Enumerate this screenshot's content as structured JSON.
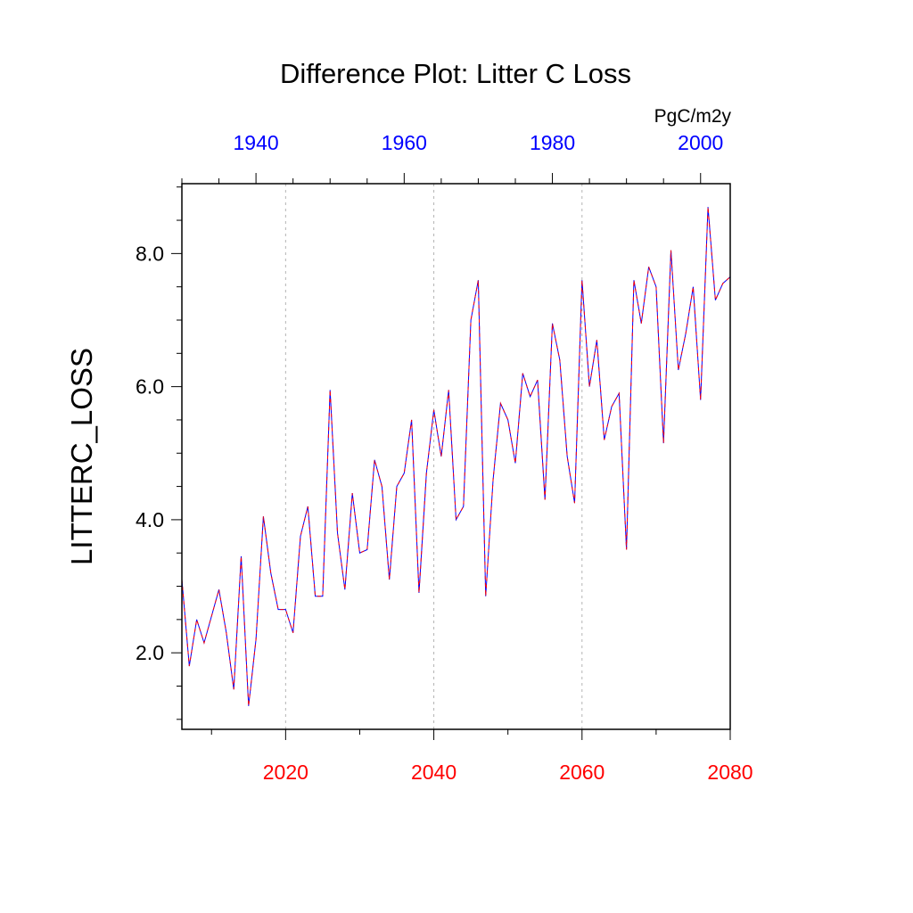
{
  "chart_data": {
    "type": "line",
    "title": "Difference Plot: Litter C Loss",
    "units_label": "PgC/m2y",
    "ylabel": "LITTERC_LOSS",
    "xlabel": "",
    "xlim": [
      2006,
      2080
    ],
    "ylim": [
      0.85,
      9.05
    ],
    "grid": "vertical dashed gridlines at 2020, 2040, 2060",
    "y_ticks": [
      {
        "value": 2.0,
        "label": "2.0"
      },
      {
        "value": 4.0,
        "label": "4.0"
      },
      {
        "value": 6.0,
        "label": "6.0"
      },
      {
        "value": 8.0,
        "label": "8.0"
      }
    ],
    "x_bottom_ticks": [
      {
        "value": 2020,
        "label": "2020"
      },
      {
        "value": 2040,
        "label": "2040"
      },
      {
        "value": 2060,
        "label": "2060"
      },
      {
        "value": 2080,
        "label": "2080"
      }
    ],
    "x_top_ticks": [
      {
        "value": 2016,
        "label": "1940"
      },
      {
        "value": 2036,
        "label": "1960"
      },
      {
        "value": 2056,
        "label": "1980"
      },
      {
        "value": 2076,
        "label": "2000"
      }
    ],
    "bottom_axis_color": "#ff0000",
    "top_axis_color": "#0000ff",
    "series": [
      {
        "color_solid": "#0000ff",
        "color_dash": "#ff0000",
        "x": [
          2006,
          2007,
          2008,
          2009,
          2010,
          2011,
          2012,
          2013,
          2014,
          2015,
          2016,
          2017,
          2018,
          2019,
          2020,
          2021,
          2022,
          2023,
          2024,
          2025,
          2026,
          2027,
          2028,
          2029,
          2030,
          2031,
          2032,
          2033,
          2034,
          2035,
          2036,
          2037,
          2038,
          2039,
          2040,
          2041,
          2042,
          2043,
          2044,
          2045,
          2046,
          2047,
          2048,
          2049,
          2050,
          2051,
          2052,
          2053,
          2054,
          2055,
          2056,
          2057,
          2058,
          2059,
          2060,
          2061,
          2062,
          2063,
          2064,
          2065,
          2066,
          2067,
          2068,
          2069,
          2070,
          2071,
          2072,
          2073,
          2074,
          2075,
          2076,
          2077,
          2078,
          2079,
          2080
        ],
        "y": [
          3.1,
          1.8,
          2.5,
          2.15,
          2.55,
          2.95,
          2.3,
          1.45,
          3.45,
          1.2,
          2.2,
          4.05,
          3.2,
          2.65,
          2.65,
          2.3,
          3.75,
          4.2,
          2.85,
          2.85,
          5.95,
          3.8,
          2.95,
          4.4,
          3.5,
          3.55,
          4.9,
          4.5,
          3.1,
          4.5,
          4.7,
          5.5,
          2.9,
          4.7,
          5.65,
          4.95,
          5.95,
          4.0,
          4.2,
          7.0,
          7.6,
          2.85,
          4.6,
          5.75,
          5.5,
          4.85,
          6.2,
          5.85,
          6.1,
          4.3,
          6.95,
          6.4,
          4.95,
          4.25,
          7.6,
          6.0,
          6.7,
          5.2,
          5.7,
          5.9,
          3.55,
          7.6,
          6.95,
          7.8,
          7.5,
          5.15,
          8.05,
          6.25,
          6.8,
          7.5,
          5.8,
          8.7,
          7.3,
          7.55,
          7.65
        ]
      }
    ]
  }
}
